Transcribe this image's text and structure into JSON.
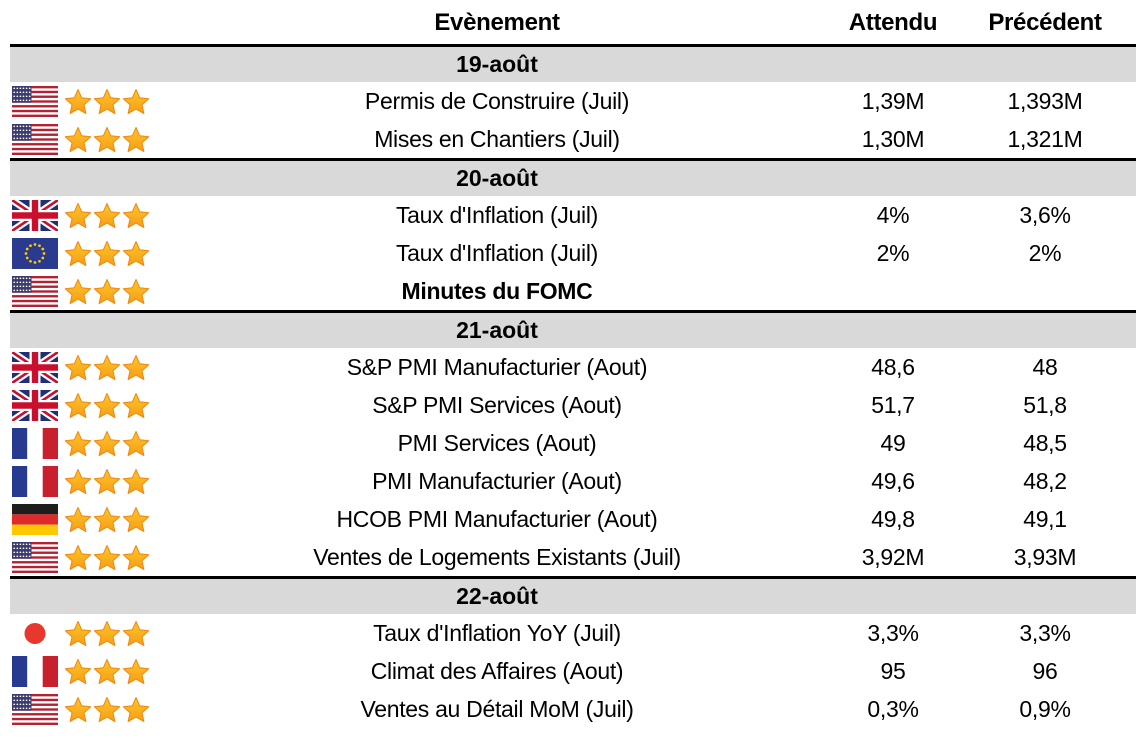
{
  "table": {
    "columns": {
      "event": "Evènement",
      "expected": "Attendu",
      "previous": "Précédent"
    },
    "sections": [
      {
        "date": "19-août",
        "rows": [
          {
            "country": "united-states",
            "stars": 3,
            "event": "Permis de Construire (Juil)",
            "expected": "1,39M",
            "previous": "1,393M",
            "bold": false
          },
          {
            "country": "united-states",
            "stars": 3,
            "event": "Mises en Chantiers (Juil)",
            "expected": "1,30M",
            "previous": "1,321M",
            "bold": false
          }
        ]
      },
      {
        "date": "20-août",
        "rows": [
          {
            "country": "united-kingdom",
            "stars": 3,
            "event": "Taux d'Inflation (Juil)",
            "expected": "4%",
            "previous": "3,6%",
            "bold": false
          },
          {
            "country": "european-union",
            "stars": 3,
            "event": "Taux d'Inflation (Juil)",
            "expected": "2%",
            "previous": "2%",
            "bold": false
          },
          {
            "country": "united-states",
            "stars": 3,
            "event": "Minutes du FOMC",
            "expected": "",
            "previous": "",
            "bold": true
          }
        ]
      },
      {
        "date": "21-août",
        "rows": [
          {
            "country": "united-kingdom",
            "stars": 3,
            "event": "S&P PMI Manufacturier (Aout)",
            "expected": "48,6",
            "previous": "48",
            "bold": false
          },
          {
            "country": "united-kingdom",
            "stars": 3,
            "event": "S&P PMI Services (Aout)",
            "expected": "51,7",
            "previous": "51,8",
            "bold": false
          },
          {
            "country": "france",
            "stars": 3,
            "event": "PMI Services  (Aout)",
            "expected": "49",
            "previous": "48,5",
            "bold": false
          },
          {
            "country": "france",
            "stars": 3,
            "event": "PMI Manufacturier (Aout)",
            "expected": "49,6",
            "previous": "48,2",
            "bold": false
          },
          {
            "country": "germany",
            "stars": 3,
            "event": "HCOB PMI Manufacturier (Aout)",
            "expected": "49,8",
            "previous": "49,1",
            "bold": false
          },
          {
            "country": "united-states",
            "stars": 3,
            "event": "Ventes de Logements Existants (Juil)",
            "expected": "3,92M",
            "previous": "3,93M",
            "bold": false
          }
        ]
      },
      {
        "date": "22-août",
        "rows": [
          {
            "country": "japan",
            "stars": 3,
            "event": "Taux d'Inflation YoY (Juil)",
            "expected": "3,3%",
            "previous": "3,3%",
            "bold": false
          },
          {
            "country": "france",
            "stars": 3,
            "event": "Climat des Affaires (Aout)",
            "expected": "95",
            "previous": "96",
            "bold": false
          },
          {
            "country": "united-states",
            "stars": 3,
            "event": "Ventes au Détail MoM (Juil)",
            "expected": "0,3%",
            "previous": "0,9%",
            "bold": false
          }
        ]
      }
    ]
  },
  "colors": {
    "section_band_gray": "#d9d9d9",
    "rule_black": "#000000",
    "star_gold": "#FBAD18",
    "star_edge_orange": "#F0880E"
  }
}
